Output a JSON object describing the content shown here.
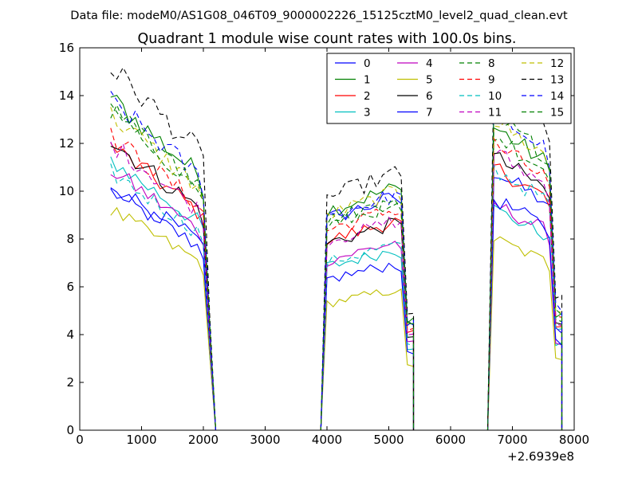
{
  "header": {
    "data_file": "Data file: modeM0/AS1G08_046T09_9000002226_15125cztM0_level2_quad_clean.evt",
    "title": "Quadrant 1 module wise count rates with 100.0s bins."
  },
  "chart_data": {
    "type": "line",
    "title": "Quadrant 1 module wise count rates with 100.0s bins.",
    "xlabel": "",
    "ylabel": "",
    "x_offset_label": "+2.6939e8",
    "xlim": [
      0,
      8000
    ],
    "ylim": [
      0,
      16
    ],
    "x_ticks": [
      0,
      1000,
      2000,
      3000,
      4000,
      5000,
      6000,
      7000,
      8000
    ],
    "y_ticks": [
      0,
      2,
      4,
      6,
      8,
      10,
      12,
      14,
      16
    ],
    "grid": false,
    "legend": {
      "placement": "top-right",
      "columns": 4
    },
    "segment_x_ranges": [
      [
        500,
        2200
      ],
      [
        3900,
        5400
      ],
      [
        6600,
        7800
      ]
    ],
    "gap_x_ranges": [
      [
        2200,
        3900
      ],
      [
        5400,
        6600
      ]
    ],
    "series": [
      {
        "name": "0",
        "color": "#0000ff",
        "dash": "solid",
        "levels": [
          10.0,
          9.8,
          10.4
        ]
      },
      {
        "name": "1",
        "color": "#008000",
        "dash": "solid",
        "levels": [
          13.9,
          10.2,
          12.2
        ]
      },
      {
        "name": "2",
        "color": "#ff0000",
        "dash": "solid",
        "levels": [
          11.9,
          8.8,
          10.6
        ]
      },
      {
        "name": "3",
        "color": "#00bfbf",
        "dash": "solid",
        "levels": [
          11.3,
          7.6,
          8.9
        ]
      },
      {
        "name": "4",
        "color": "#bf00bf",
        "dash": "solid",
        "levels": [
          10.9,
          7.9,
          9.1
        ]
      },
      {
        "name": "5",
        "color": "#bfbf00",
        "dash": "solid",
        "levels": [
          9.2,
          5.9,
          7.7
        ]
      },
      {
        "name": "6",
        "color": "#000000",
        "dash": "solid",
        "levels": [
          12.1,
          8.7,
          11.0
        ]
      },
      {
        "name": "7",
        "color": "#0000ff",
        "dash": "solid",
        "levels": [
          10.3,
          7.0,
          9.3
        ]
      },
      {
        "name": "8",
        "color": "#008000",
        "dash": "dashed",
        "levels": [
          13.5,
          9.7,
          11.9
        ]
      },
      {
        "name": "9",
        "color": "#ff0000",
        "dash": "dashed",
        "levels": [
          12.3,
          9.3,
          11.5
        ]
      },
      {
        "name": "10",
        "color": "#00bfbf",
        "dash": "dashed",
        "levels": [
          10.8,
          7.8,
          10.5
        ]
      },
      {
        "name": "11",
        "color": "#bf00bf",
        "dash": "dashed",
        "levels": [
          12.0,
          8.8,
          11.2
        ]
      },
      {
        "name": "12",
        "color": "#bfbf00",
        "dash": "dashed",
        "levels": [
          13.2,
          10.0,
          12.5
        ]
      },
      {
        "name": "13",
        "color": "#000000",
        "dash": "dashed",
        "levels": [
          15.2,
          10.8,
          13.8
        ]
      },
      {
        "name": "14",
        "color": "#0000ff",
        "dash": "dashed",
        "levels": [
          13.8,
          9.9,
          12.8
        ]
      },
      {
        "name": "15",
        "color": "#008000",
        "dash": "dashed",
        "levels": [
          13.3,
          9.5,
          12.6
        ]
      }
    ]
  }
}
